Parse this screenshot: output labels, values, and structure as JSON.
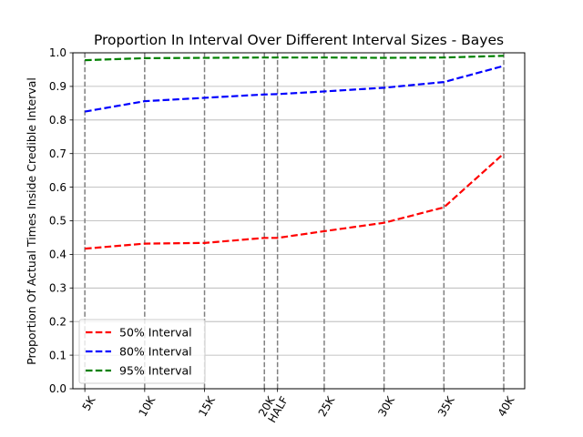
{
  "chart_data": {
    "type": "line",
    "title": "Proportion In Interval Over Different Interval Sizes - Bayes",
    "xlabel": "",
    "ylabel": "Proportion Of Actual Times Inside Credible Interval",
    "categories": [
      "5K",
      "10K",
      "15K",
      "20K",
      "HALF",
      "25K",
      "30K",
      "35K",
      "40K"
    ],
    "x": [
      5,
      10,
      15,
      20,
      21.0975,
      25,
      30,
      35,
      40
    ],
    "xlim": [
      4.0,
      41.75
    ],
    "ylim": [
      0,
      1.0
    ],
    "yticks": [
      0.0,
      0.1,
      0.2,
      0.3,
      0.4,
      0.5,
      0.6,
      0.7,
      0.8,
      0.9,
      1.0
    ],
    "ytick_labels": [
      "0.0",
      "0.1",
      "0.2",
      "0.3",
      "0.4",
      "0.5",
      "0.6",
      "0.7",
      "0.8",
      "0.9",
      "1.0"
    ],
    "grid": "horizontal",
    "vertical_reference_lines": "dashed gray at each x category",
    "legend_position": "lower-left",
    "series": [
      {
        "name": "50% Interval",
        "color": "#ff0000",
        "style": "dashed",
        "values": [
          0.417,
          0.432,
          0.434,
          0.449,
          0.449,
          0.469,
          0.494,
          0.54,
          0.7
        ]
      },
      {
        "name": "80% Interval",
        "color": "#0000ff",
        "style": "dashed",
        "values": [
          0.825,
          0.856,
          0.866,
          0.876,
          0.877,
          0.885,
          0.896,
          0.913,
          0.961
        ]
      },
      {
        "name": "95% Interval",
        "color": "#008000",
        "style": "dashed",
        "values": [
          0.978,
          0.984,
          0.985,
          0.986,
          0.986,
          0.986,
          0.985,
          0.986,
          0.991
        ]
      }
    ]
  }
}
